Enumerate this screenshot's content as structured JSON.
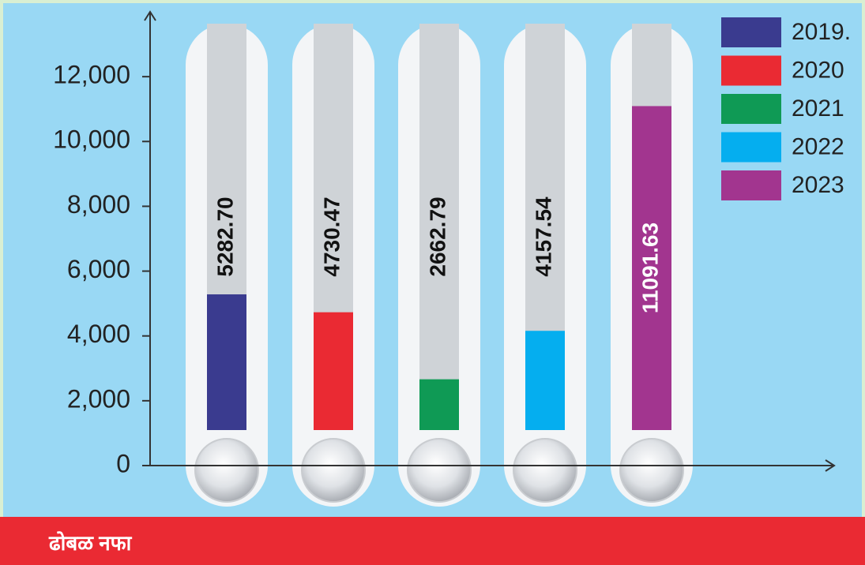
{
  "chart_data": {
    "type": "thermometer-bar",
    "title": "ढोबळ नफा",
    "categories": [
      "2019.",
      "2020",
      "2021",
      "2022",
      "2023"
    ],
    "values": [
      5282.7,
      4730.47,
      2662.79,
      4157.54,
      11091.63
    ],
    "value_labels": [
      "5282.70",
      "4730.47",
      "2662.79",
      "4157.54",
      "11091.63"
    ],
    "colors": [
      "#3a3b8f",
      "#ea2a33",
      "#0f9a55",
      "#05aeef",
      "#a2358f"
    ],
    "ylim": [
      0,
      14000
    ],
    "yticks": [
      0,
      {
        "value": 2000,
        "label": "2,000"
      },
      {
        "value": 4000,
        "label": "4,000"
      },
      {
        "value": 6000,
        "label": "6,000"
      },
      {
        "value": 8000,
        "label": "8,000"
      },
      {
        "value": 10000,
        "label": "10,000"
      },
      {
        "value": 12000,
        "label": "12,000"
      }
    ],
    "legend": "top-right"
  }
}
